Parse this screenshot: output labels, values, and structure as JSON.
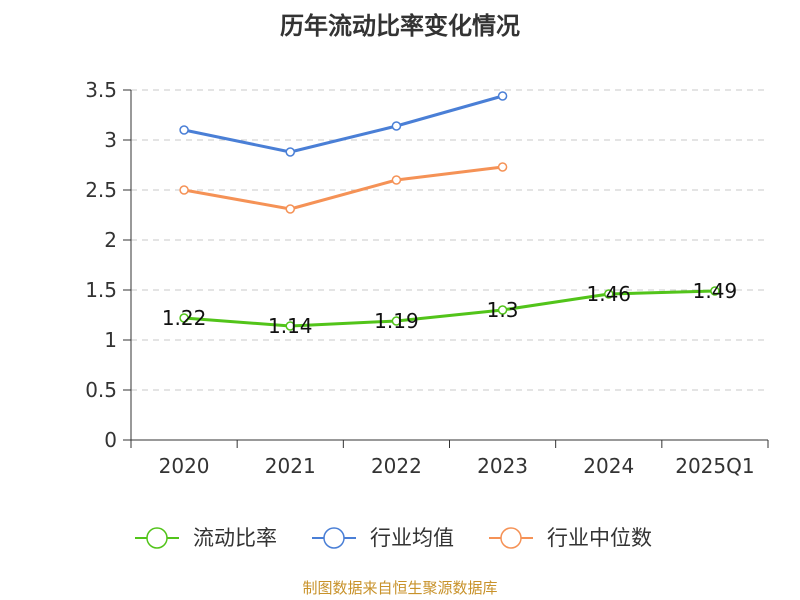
{
  "chart_data": {
    "type": "line",
    "title": "历年流动比率变化情况",
    "categories": [
      "2020",
      "2021",
      "2022",
      "2023",
      "2024",
      "2025Q1"
    ],
    "ylim": [
      0,
      3.5
    ],
    "yticks": [
      "0",
      "0.5",
      "1",
      "1.5",
      "2",
      "2.5",
      "3",
      "3.5"
    ],
    "grid": true,
    "legend_position": "bottom",
    "series": [
      {
        "name": "流动比率",
        "color": "#52c41a",
        "values": [
          1.22,
          1.14,
          1.19,
          1.3,
          1.46,
          1.49
        ],
        "labels": [
          "1.22",
          "1.14",
          "1.19",
          "1.3",
          "1.46",
          "1.49"
        ]
      },
      {
        "name": "行业均值",
        "color": "#4a7fd6",
        "values": [
          3.1,
          2.88,
          3.14,
          3.44,
          null,
          null
        ]
      },
      {
        "name": "行业中位数",
        "color": "#f59256",
        "values": [
          2.5,
          2.31,
          2.6,
          2.73,
          null,
          null
        ]
      }
    ]
  },
  "source_note": "制图数据来自恒生聚源数据库"
}
